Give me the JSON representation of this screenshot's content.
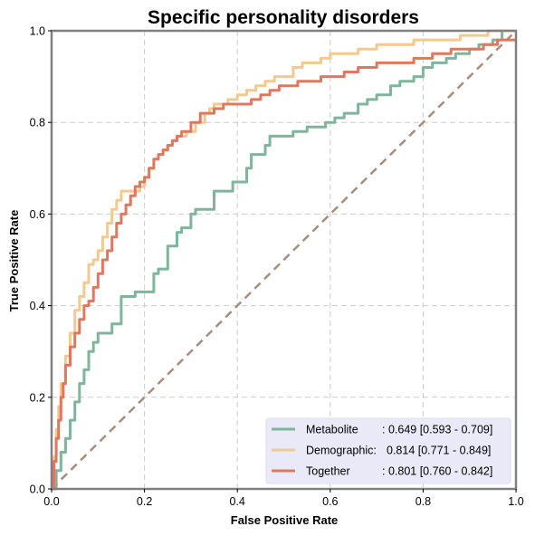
{
  "chart_data": {
    "type": "line",
    "title": "Specific personality disorders",
    "xlabel": "False Positive Rate",
    "ylabel": "True Positive Rate",
    "xlim": [
      0,
      1
    ],
    "ylim": [
      0,
      1
    ],
    "x_ticks": [
      "0.0",
      "0.2",
      "0.4",
      "0.6",
      "0.8",
      "1.0"
    ],
    "y_ticks": [
      "0.0",
      "0.2",
      "0.4",
      "0.6",
      "0.8",
      "1.0"
    ],
    "grid": true,
    "legend_position": "bottom-right",
    "diagonal": {
      "x": [
        0,
        1
      ],
      "y": [
        0,
        1
      ],
      "color": "#a98c7c",
      "style": "dashed"
    },
    "series": [
      {
        "name": "Metabolite",
        "auc_text": ": 0.649 [0.593 - 0.709]",
        "color": "#7fb59a",
        "x": [
          0,
          0.01,
          0.02,
          0.03,
          0.04,
          0.05,
          0.06,
          0.07,
          0.08,
          0.09,
          0.1,
          0.11,
          0.13,
          0.15,
          0.18,
          0.19,
          0.2,
          0.22,
          0.23,
          0.25,
          0.27,
          0.28,
          0.3,
          0.31,
          0.33,
          0.35,
          0.36,
          0.37,
          0.39,
          0.42,
          0.43,
          0.46,
          0.47,
          0.49,
          0.5,
          0.52,
          0.55,
          0.56,
          0.59,
          0.61,
          0.63,
          0.66,
          0.68,
          0.7,
          0.73,
          0.75,
          0.78,
          0.8,
          0.82,
          0.83,
          0.85,
          0.87,
          0.88,
          0.9,
          0.92,
          0.95,
          0.97,
          0.97,
          1.0
        ],
        "y": [
          0,
          0.04,
          0.08,
          0.11,
          0.15,
          0.19,
          0.23,
          0.26,
          0.3,
          0.32,
          0.34,
          0.34,
          0.36,
          0.42,
          0.43,
          0.43,
          0.43,
          0.47,
          0.48,
          0.53,
          0.56,
          0.57,
          0.6,
          0.61,
          0.61,
          0.65,
          0.65,
          0.65,
          0.67,
          0.7,
          0.73,
          0.75,
          0.77,
          0.77,
          0.77,
          0.78,
          0.79,
          0.79,
          0.8,
          0.81,
          0.82,
          0.84,
          0.85,
          0.86,
          0.88,
          0.89,
          0.9,
          0.92,
          0.93,
          0.93,
          0.94,
          0.95,
          0.95,
          0.96,
          0.97,
          0.98,
          0.99,
          1.0,
          1.0
        ]
      },
      {
        "name": "Demographic:",
        "auc_text": "0.814 [0.771 - 0.849]",
        "color": "#f4c98e",
        "x": [
          0,
          0.005,
          0.01,
          0.015,
          0.02,
          0.03,
          0.04,
          0.05,
          0.06,
          0.07,
          0.08,
          0.09,
          0.1,
          0.11,
          0.12,
          0.13,
          0.14,
          0.15,
          0.16,
          0.17,
          0.18,
          0.19,
          0.2,
          0.21,
          0.22,
          0.23,
          0.24,
          0.25,
          0.26,
          0.27,
          0.29,
          0.31,
          0.33,
          0.34,
          0.35,
          0.37,
          0.38,
          0.4,
          0.42,
          0.44,
          0.46,
          0.48,
          0.5,
          0.52,
          0.54,
          0.56,
          0.58,
          0.6,
          0.62,
          0.66,
          0.68,
          0.7,
          0.74,
          0.78,
          0.8,
          0.85,
          0.88,
          0.91,
          0.94,
          0.96,
          1.0
        ],
        "y": [
          0,
          0.07,
          0.13,
          0.18,
          0.23,
          0.29,
          0.34,
          0.39,
          0.42,
          0.45,
          0.49,
          0.5,
          0.52,
          0.55,
          0.58,
          0.61,
          0.63,
          0.65,
          0.65,
          0.65,
          0.65,
          0.66,
          0.68,
          0.7,
          0.72,
          0.73,
          0.74,
          0.75,
          0.76,
          0.77,
          0.78,
          0.8,
          0.82,
          0.83,
          0.84,
          0.84,
          0.85,
          0.86,
          0.87,
          0.88,
          0.89,
          0.9,
          0.9,
          0.92,
          0.93,
          0.93,
          0.94,
          0.95,
          0.95,
          0.96,
          0.96,
          0.97,
          0.97,
          0.98,
          0.98,
          0.98,
          0.99,
          0.99,
          1.0,
          1.0,
          1.0
        ]
      },
      {
        "name": "Together",
        "auc_text": ": 0.801 [0.760 - 0.842]",
        "color": "#e07860",
        "x": [
          0,
          0.005,
          0.01,
          0.015,
          0.02,
          0.025,
          0.03,
          0.04,
          0.05,
          0.06,
          0.07,
          0.08,
          0.09,
          0.1,
          0.11,
          0.12,
          0.13,
          0.14,
          0.15,
          0.16,
          0.17,
          0.18,
          0.19,
          0.2,
          0.21,
          0.22,
          0.23,
          0.24,
          0.25,
          0.26,
          0.27,
          0.28,
          0.3,
          0.32,
          0.33,
          0.35,
          0.37,
          0.39,
          0.41,
          0.43,
          0.45,
          0.47,
          0.49,
          0.51,
          0.53,
          0.55,
          0.58,
          0.6,
          0.63,
          0.66,
          0.7,
          0.74,
          0.78,
          0.82,
          0.86,
          0.9,
          0.93,
          0.96,
          1.0
        ],
        "y": [
          0,
          0.06,
          0.11,
          0.15,
          0.2,
          0.23,
          0.27,
          0.31,
          0.34,
          0.37,
          0.4,
          0.41,
          0.44,
          0.47,
          0.5,
          0.52,
          0.55,
          0.58,
          0.6,
          0.62,
          0.64,
          0.66,
          0.67,
          0.68,
          0.7,
          0.72,
          0.73,
          0.74,
          0.75,
          0.76,
          0.77,
          0.78,
          0.8,
          0.82,
          0.82,
          0.83,
          0.84,
          0.84,
          0.84,
          0.85,
          0.86,
          0.87,
          0.88,
          0.88,
          0.89,
          0.89,
          0.9,
          0.9,
          0.91,
          0.92,
          0.93,
          0.93,
          0.94,
          0.95,
          0.96,
          0.96,
          0.97,
          0.98,
          0.98
        ]
      }
    ]
  }
}
